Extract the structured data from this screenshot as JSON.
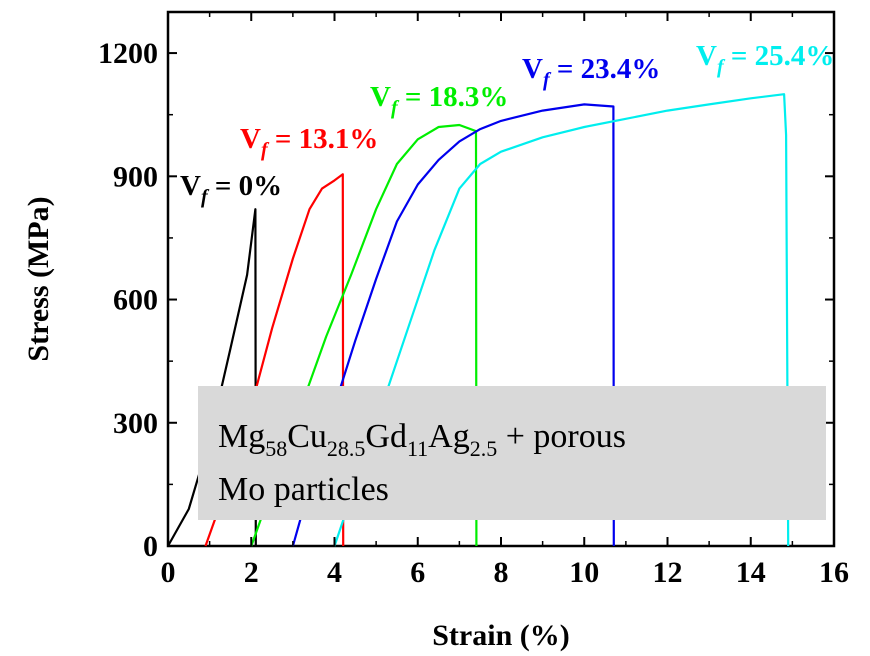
{
  "chart_data": {
    "type": "line",
    "xlabel": "Strain (%)",
    "ylabel": "Stress (MPa)",
    "xlim": [
      0,
      16
    ],
    "ylim": [
      0,
      1300
    ],
    "xticks": [
      "0",
      "2",
      "4",
      "6",
      "8",
      "10",
      "12",
      "14",
      "16"
    ],
    "yticks": [
      "0",
      "300",
      "600",
      "900",
      "1200"
    ],
    "grid": false,
    "annotation": {
      "line1_parts": [
        {
          "t": "Mg"
        },
        {
          "t": "58",
          "sub": true
        },
        {
          "t": "Cu"
        },
        {
          "t": "28.5",
          "sub": true
        },
        {
          "t": "Gd"
        },
        {
          "t": "11",
          "sub": true
        },
        {
          "t": "Ag"
        },
        {
          "t": "2.5",
          "sub": true
        },
        {
          "t": " + porous"
        }
      ],
      "line2": "Mo particles"
    },
    "series": [
      {
        "label_main": "V",
        "label_sub": "f",
        "label_rest": " = 0%",
        "color": "#000000",
        "points": [
          [
            0,
            0
          ],
          [
            0.5,
            90
          ],
          [
            1.0,
            260
          ],
          [
            1.5,
            480
          ],
          [
            1.9,
            660
          ],
          [
            2.1,
            820
          ],
          [
            2.11,
            0
          ]
        ]
      },
      {
        "label_main": "V",
        "label_sub": "f",
        "label_rest": " = 13.1%",
        "color": "#ff0000",
        "points": [
          [
            0.9,
            0
          ],
          [
            1.5,
            170
          ],
          [
            2.0,
            340
          ],
          [
            2.5,
            530
          ],
          [
            3.0,
            700
          ],
          [
            3.4,
            820
          ],
          [
            3.7,
            870
          ],
          [
            4.0,
            890
          ],
          [
            4.2,
            905
          ],
          [
            4.21,
            0
          ]
        ]
      },
      {
        "label_main": "V",
        "label_sub": "f",
        "label_rest": " = 18.3%",
        "color": "#00ee00",
        "points": [
          [
            2.0,
            0
          ],
          [
            2.6,
            170
          ],
          [
            3.2,
            340
          ],
          [
            3.8,
            510
          ],
          [
            4.4,
            660
          ],
          [
            5.0,
            820
          ],
          [
            5.5,
            930
          ],
          [
            6.0,
            990
          ],
          [
            6.5,
            1020
          ],
          [
            7.0,
            1025
          ],
          [
            7.4,
            1010
          ],
          [
            7.41,
            0
          ]
        ]
      },
      {
        "label_main": "V",
        "label_sub": "f",
        "label_rest": " = 23.4%",
        "color": "#0000ee",
        "points": [
          [
            3.0,
            0
          ],
          [
            3.5,
            180
          ],
          [
            4.0,
            340
          ],
          [
            4.5,
            500
          ],
          [
            5.0,
            650
          ],
          [
            5.5,
            790
          ],
          [
            6.0,
            880
          ],
          [
            6.5,
            940
          ],
          [
            7.0,
            985
          ],
          [
            7.5,
            1015
          ],
          [
            8.0,
            1035
          ],
          [
            9.0,
            1060
          ],
          [
            10.0,
            1075
          ],
          [
            10.7,
            1070
          ],
          [
            10.71,
            0
          ]
        ]
      },
      {
        "label_main": "V",
        "label_sub": "f",
        "label_rest": " = 25.4%",
        "color": "#00eeee",
        "points": [
          [
            4.0,
            0
          ],
          [
            4.6,
            180
          ],
          [
            5.2,
            360
          ],
          [
            5.8,
            540
          ],
          [
            6.4,
            720
          ],
          [
            7.0,
            870
          ],
          [
            7.5,
            930
          ],
          [
            8.0,
            960
          ],
          [
            9.0,
            995
          ],
          [
            10.0,
            1020
          ],
          [
            11.0,
            1040
          ],
          [
            12.0,
            1060
          ],
          [
            13.0,
            1075
          ],
          [
            14.0,
            1090
          ],
          [
            14.8,
            1100
          ],
          [
            14.85,
            1000
          ],
          [
            14.9,
            0
          ]
        ]
      }
    ]
  }
}
